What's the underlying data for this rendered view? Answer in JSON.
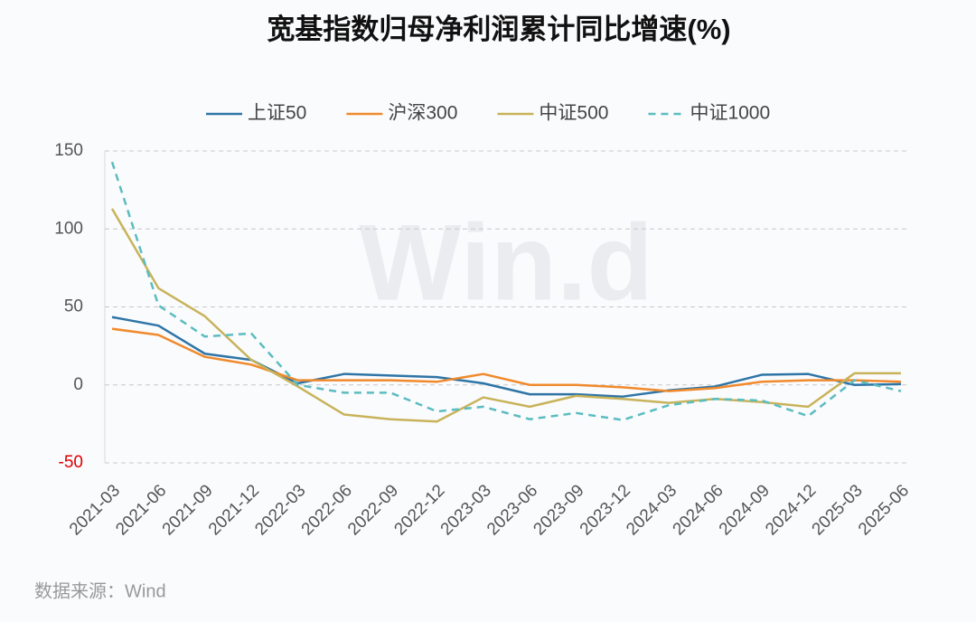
{
  "chart_data": {
    "type": "line",
    "title": "宽基指数归母净利润累计同比增速(%)",
    "categories": [
      "2021-03",
      "2021-06",
      "2021-09",
      "2021-12",
      "2022-03",
      "2022-06",
      "2022-09",
      "2022-12",
      "2023-03",
      "2023-06",
      "2023-09",
      "2023-12",
      "2024-03",
      "2024-06",
      "2024-09",
      "2024-12",
      "2025-03",
      "2025-06"
    ],
    "series": [
      {
        "name": "上证50",
        "color": "#2e75a6",
        "dash": false,
        "values": [
          43.5,
          38,
          20,
          16,
          1,
          7,
          6,
          5,
          1,
          -6,
          -6,
          -7.5,
          -3.5,
          -1,
          6.5,
          7,
          0,
          0.5
        ]
      },
      {
        "name": "沪深300",
        "color": "#f08a2c",
        "dash": false,
        "values": [
          36,
          32,
          18,
          13,
          3,
          3,
          3,
          2,
          7,
          0,
          0,
          -1.5,
          -4,
          -2,
          2,
          3,
          3,
          2
        ]
      },
      {
        "name": "中证500",
        "color": "#c8b35a",
        "dash": false,
        "values": [
          113,
          62,
          44,
          16,
          -1,
          -19,
          -22,
          -23.5,
          -8,
          -14,
          -7,
          -9,
          -11.5,
          -9,
          -11,
          -14,
          7.5,
          7.5
        ]
      },
      {
        "name": "中证1000",
        "color": "#5bbcc0",
        "dash": true,
        "values": [
          143,
          51,
          31,
          33,
          0,
          -5,
          -5,
          -17,
          -14,
          -22,
          -18,
          -22.5,
          -13,
          -9,
          -10,
          -20,
          3,
          -4
        ]
      }
    ],
    "ylim": [
      -50,
      150
    ],
    "yticks": [
      -50,
      0,
      50,
      100,
      150
    ],
    "grid": true,
    "legend": "top",
    "watermark": "Win.d",
    "source": "数据来源：Wind"
  }
}
